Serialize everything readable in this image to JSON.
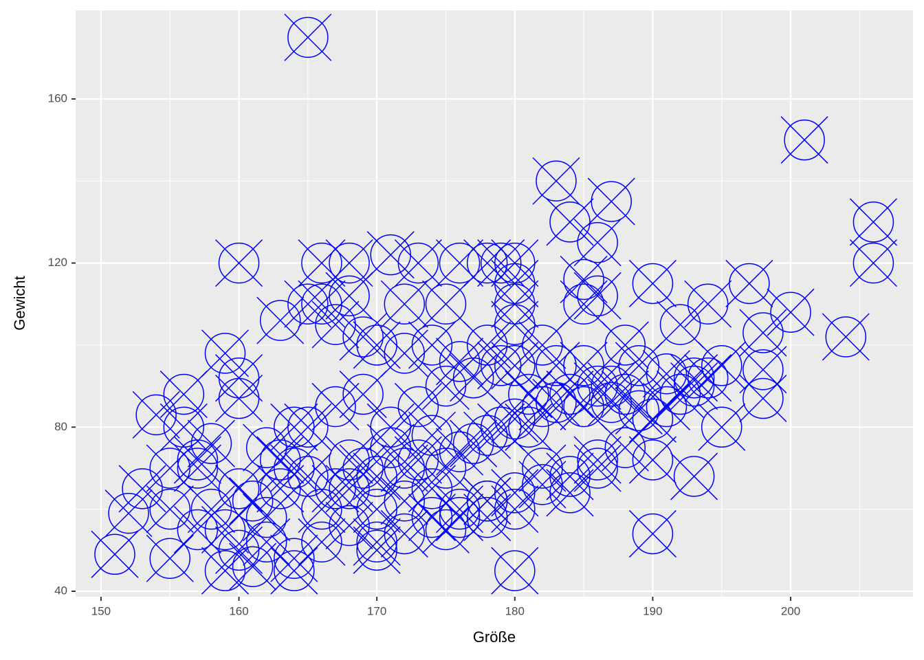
{
  "chart_data": {
    "type": "scatter",
    "x_label": "Größe",
    "y_label": "Gewicht",
    "color": "#0000ff",
    "xlim": [
      148.16,
      208.87
    ],
    "ylim": [
      38.66,
      181.6
    ],
    "xticks": [
      150,
      160,
      170,
      180,
      190,
      200
    ],
    "yticks": [
      40,
      80,
      120,
      160
    ],
    "x_minor_breaks": [
      155,
      165,
      175,
      185,
      195,
      205
    ],
    "y_minor_breaks": [
      60,
      100,
      140
    ],
    "grid": true,
    "x": [
      165,
      201,
      206,
      206,
      204,
      200,
      197,
      183,
      187,
      184,
      186,
      160,
      166,
      168,
      171,
      173,
      176,
      178,
      179,
      180,
      190,
      180,
      151,
      152,
      154,
      156,
      159,
      163,
      165,
      198,
      198,
      198,
      193,
      195,
      194,
      190,
      192,
      188,
      186,
      185,
      185,
      182,
      180,
      180,
      180,
      180,
      175,
      172,
      169,
      168,
      167,
      166,
      164,
      162,
      160,
      160,
      158,
      157,
      155,
      155,
      156,
      157,
      158,
      159,
      160,
      161,
      162,
      163,
      164,
      165,
      166,
      167,
      168,
      169,
      170,
      171,
      172,
      173,
      174,
      175,
      176,
      177,
      178,
      179,
      180,
      181,
      182,
      183,
      184,
      185,
      186,
      187,
      188,
      189,
      190,
      191,
      192,
      193,
      194,
      195,
      160,
      162,
      164,
      166,
      168,
      170,
      172,
      174,
      176,
      178,
      180,
      182,
      184,
      186,
      188,
      190,
      163,
      165,
      167,
      169,
      171,
      173,
      175,
      177,
      179,
      181,
      183,
      185,
      187,
      189,
      191,
      193,
      170,
      172,
      174,
      176,
      178,
      168,
      170,
      172,
      174,
      176,
      178,
      180,
      182,
      184,
      186,
      159,
      161,
      164,
      170,
      175,
      178,
      155,
      153,
      157
    ],
    "y": [
      175,
      150,
      130,
      120,
      102,
      108,
      115,
      140,
      135,
      130,
      125,
      120,
      120,
      120,
      122,
      120,
      120,
      120,
      120,
      120,
      54,
      45,
      49,
      59,
      83,
      88,
      98,
      106,
      110,
      103,
      94,
      87,
      68,
      80,
      110,
      115,
      105,
      100,
      112,
      116,
      110,
      100,
      115,
      110,
      105,
      95,
      110,
      110,
      102,
      112,
      105,
      110,
      80,
      75,
      92,
      87,
      76,
      70,
      70,
      60,
      80,
      72,
      60,
      55,
      65,
      62,
      58,
      65,
      70,
      68,
      60,
      65,
      72,
      70,
      68,
      75,
      70,
      72,
      78,
      70,
      74,
      76,
      78,
      80,
      82,
      80,
      85,
      86,
      88,
      85,
      90,
      86,
      88,
      84,
      82,
      85,
      88,
      90,
      92,
      95,
      50,
      52,
      48,
      52,
      56,
      50,
      54,
      58,
      60,
      62,
      60,
      70,
      68,
      72,
      75,
      72,
      72,
      80,
      85,
      88,
      80,
      85,
      90,
      92,
      95,
      88,
      95,
      95,
      90,
      95,
      93,
      92,
      100,
      98,
      100,
      96,
      100,
      65,
      60,
      62,
      65,
      58,
      62,
      64,
      66,
      64,
      70,
      45,
      46,
      45,
      52,
      55,
      58,
      48,
      65,
      55
    ]
  }
}
